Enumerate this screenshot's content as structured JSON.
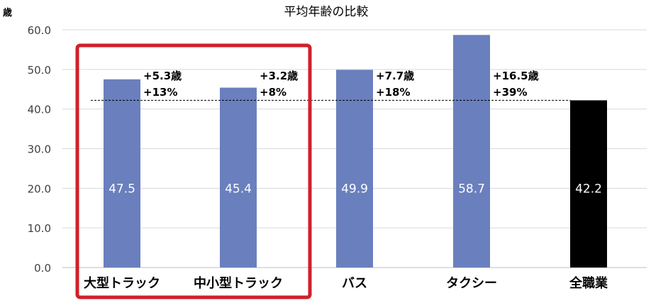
{
  "chart_data": {
    "type": "bar",
    "title": "平均年齢の比較",
    "ylabel": "歳",
    "ylim": [
      0,
      60
    ],
    "yticks": [
      "0.0",
      "10.0",
      "20.0",
      "30.0",
      "40.0",
      "50.0",
      "60.0"
    ],
    "categories": [
      "大型トラック",
      "中小型トラック",
      "バス",
      "タクシー",
      "全職業"
    ],
    "values": [
      47.5,
      45.4,
      49.9,
      58.7,
      42.2
    ],
    "value_labels": [
      "47.5",
      "45.4",
      "49.9",
      "58.7",
      "42.2"
    ],
    "annotations": [
      {
        "diff": "+5.3歳",
        "pct": "+13%"
      },
      {
        "diff": "+3.2歳",
        "pct": "+8%"
      },
      {
        "diff": "+7.7歳",
        "pct": "+18%"
      },
      {
        "diff": "+16.5歳",
        "pct": "+39%"
      }
    ],
    "reference_line": 42.2,
    "highlight_categories": [
      0,
      1
    ],
    "bar_colors": [
      "#6a7fbd",
      "#6a7fbd",
      "#6a7fbd",
      "#6a7fbd",
      "#000000"
    ],
    "highlight_color": "#d0202a",
    "grid": true,
    "legend": "none"
  }
}
